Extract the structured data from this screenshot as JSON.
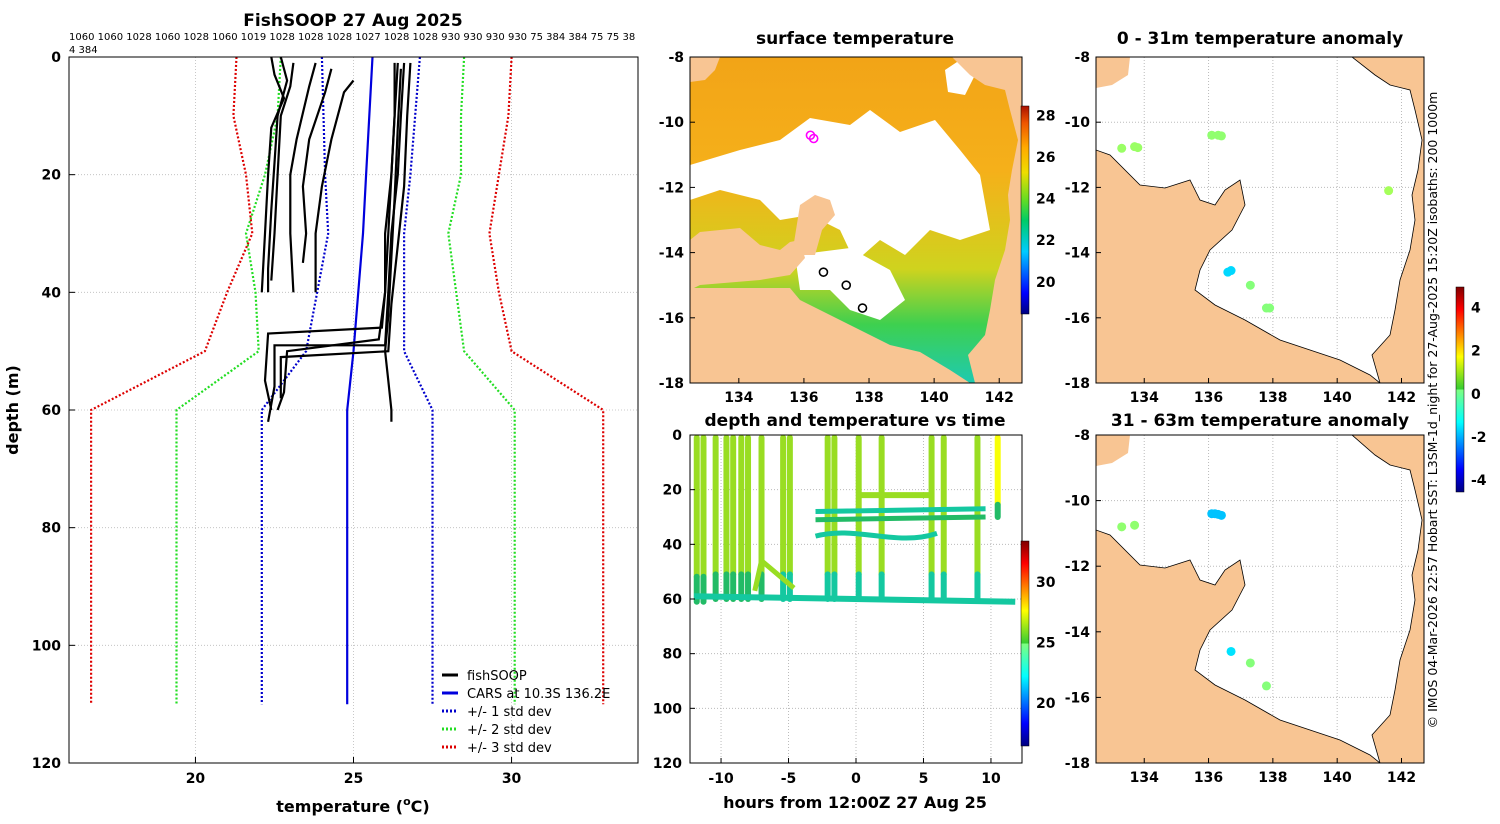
{
  "chart_data": [
    {
      "id": "profile",
      "type": "line",
      "title": "FishSOOP 27 Aug 2025",
      "xlabel": "temperature (°C)",
      "xlabel_main": "temperature (",
      "xlabel_sup": "o",
      "xlabel_tail": "C)",
      "ylabel": "depth (m)",
      "xlim": [
        16,
        34
      ],
      "ylim": [
        0,
        120
      ],
      "xticks": [
        20,
        25,
        30
      ],
      "yticks": [
        0,
        20,
        40,
        60,
        80,
        100,
        120
      ],
      "y_reversed": true,
      "grid": true,
      "top_labels_line1": "1060 1060 1028 1060 1028 1060 1019 1028 1028 1028 1027 1028 1028 930 930 930 930 75 384 384 75 75 38",
      "top_labels_line2": "4 384",
      "legend_position": "bottom-right",
      "legend": [
        {
          "label": "fishSOOP",
          "color": "#000000",
          "style": "solid"
        },
        {
          "label": "CARS at 10.3S 136.2E",
          "color": "#0000dd",
          "style": "solid"
        },
        {
          "label": "+/- 1 std dev",
          "color": "#0000cc",
          "style": "dotted"
        },
        {
          "label": "+/- 2 std dev",
          "color": "#22dd22",
          "style": "dotted"
        },
        {
          "label": "+/- 3 std dev",
          "color": "#dd0000",
          "style": "dotted"
        }
      ],
      "series": [
        {
          "name": "CARS",
          "color": "#0000dd",
          "style": "solid",
          "points": [
            [
              25.6,
              0
            ],
            [
              25.4,
              20
            ],
            [
              25.3,
              30
            ],
            [
              25.0,
              50
            ],
            [
              24.8,
              60
            ],
            [
              24.8,
              110
            ]
          ]
        },
        {
          "name": "-1 std",
          "color": "#0000cc",
          "style": "dotted",
          "points": [
            [
              24.0,
              0
            ],
            [
              24.1,
              20
            ],
            [
              24.2,
              30
            ],
            [
              23.5,
              50
            ],
            [
              22.1,
              60
            ],
            [
              22.1,
              110
            ]
          ]
        },
        {
          "name": "+1 std",
          "color": "#0000cc",
          "style": "dotted",
          "points": [
            [
              27.1,
              0
            ],
            [
              26.8,
              20
            ],
            [
              26.6,
              30
            ],
            [
              26.6,
              50
            ],
            [
              27.5,
              60
            ],
            [
              27.5,
              110
            ]
          ]
        },
        {
          "name": "-2 std",
          "color": "#22dd22",
          "style": "dotted",
          "points": [
            [
              22.7,
              0
            ],
            [
              22.6,
              10
            ],
            [
              22.2,
              20
            ],
            [
              21.6,
              30
            ],
            [
              21.9,
              40
            ],
            [
              22.0,
              50
            ],
            [
              19.4,
              60
            ],
            [
              19.4,
              110
            ]
          ]
        },
        {
          "name": "+2 std",
          "color": "#22dd22",
          "style": "dotted",
          "points": [
            [
              28.5,
              0
            ],
            [
              28.4,
              10
            ],
            [
              28.4,
              20
            ],
            [
              28.0,
              30
            ],
            [
              28.5,
              50
            ],
            [
              30.1,
              60
            ],
            [
              30.1,
              110
            ]
          ]
        },
        {
          "name": "-3 std",
          "color": "#dd0000",
          "style": "dotted",
          "points": [
            [
              21.3,
              0
            ],
            [
              21.2,
              10
            ],
            [
              21.6,
              20
            ],
            [
              21.8,
              30
            ],
            [
              21.0,
              40
            ],
            [
              20.3,
              50
            ],
            [
              16.7,
              60
            ],
            [
              16.7,
              110
            ]
          ]
        },
        {
          "name": "+3 std",
          "color": "#dd0000",
          "style": "dotted",
          "points": [
            [
              30.0,
              0
            ],
            [
              29.9,
              10
            ],
            [
              29.6,
              20
            ],
            [
              29.3,
              30
            ],
            [
              29.6,
              40
            ],
            [
              30.0,
              50
            ],
            [
              32.9,
              60
            ],
            [
              32.9,
              110
            ]
          ]
        },
        {
          "name": "fishSOOP A",
          "color": "#000000",
          "style": "solid",
          "points": [
            [
              22.4,
              0
            ],
            [
              22.5,
              3
            ],
            [
              22.8,
              7
            ],
            [
              22.4,
              12
            ],
            [
              22.3,
              20
            ],
            [
              22.2,
              30
            ],
            [
              22.1,
              40
            ]
          ]
        },
        {
          "name": "fishSOOP B",
          "color": "#000000",
          "style": "solid",
          "points": [
            [
              22.7,
              0
            ],
            [
              22.9,
              4
            ],
            [
              22.6,
              10
            ],
            [
              22.5,
              18
            ],
            [
              22.4,
              26
            ],
            [
              22.3,
              36
            ],
            [
              22.3,
              40
            ]
          ]
        },
        {
          "name": "fishSOOP C",
          "color": "#000000",
          "style": "solid",
          "points": [
            [
              23.1,
              1
            ],
            [
              23.0,
              5
            ],
            [
              22.7,
              10
            ],
            [
              22.6,
              20
            ],
            [
              22.5,
              30
            ],
            [
              22.4,
              38
            ]
          ]
        },
        {
          "name": "fishSOOP D",
          "color": "#000000",
          "style": "solid",
          "points": [
            [
              23.8,
              1
            ],
            [
              23.6,
              5
            ],
            [
              23.2,
              14
            ],
            [
              23.0,
              20
            ],
            [
              23.0,
              30
            ],
            [
              23.1,
              40
            ]
          ]
        },
        {
          "name": "fishSOOP E",
          "color": "#000000",
          "style": "solid",
          "points": [
            [
              24.3,
              2
            ],
            [
              24.1,
              6
            ],
            [
              23.6,
              14
            ],
            [
              23.4,
              22
            ],
            [
              23.5,
              30
            ],
            [
              23.4,
              35
            ]
          ]
        },
        {
          "name": "fishSOOP F",
          "color": "#000000",
          "style": "solid",
          "points": [
            [
              25.0,
              4
            ],
            [
              24.7,
              6
            ],
            [
              24.3,
              14
            ],
            [
              24.0,
              22
            ],
            [
              23.8,
              30
            ],
            [
              23.8,
              40
            ]
          ]
        },
        {
          "name": "fishSOOP G",
          "color": "#000000",
          "style": "solid",
          "points": [
            [
              26.4,
              1
            ],
            [
              26.3,
              10
            ],
            [
              26.2,
              20
            ],
            [
              26.0,
              30
            ],
            [
              26.0,
              40
            ],
            [
              25.9,
              46
            ],
            [
              22.3,
              47
            ],
            [
              22.2,
              55
            ],
            [
              22.4,
              60
            ]
          ]
        },
        {
          "name": "fishSOOP H",
          "color": "#000000",
          "style": "solid",
          "points": [
            [
              26.6,
              1
            ],
            [
              26.5,
              10
            ],
            [
              26.4,
              20
            ],
            [
              26.2,
              30
            ],
            [
              26.1,
              40
            ],
            [
              26.0,
              49
            ],
            [
              22.5,
              49
            ],
            [
              22.5,
              56
            ],
            [
              22.3,
              62
            ]
          ]
        },
        {
          "name": "fishSOOP I",
          "color": "#000000",
          "style": "solid",
          "points": [
            [
              26.8,
              1
            ],
            [
              26.7,
              10
            ],
            [
              26.6,
              22
            ],
            [
              26.4,
              32
            ],
            [
              26.2,
              42
            ],
            [
              26.1,
              50
            ],
            [
              22.7,
              51
            ],
            [
              22.7,
              58
            ]
          ]
        },
        {
          "name": "fishSOOP J",
          "color": "#000000",
          "style": "solid",
          "points": [
            [
              26.5,
              2
            ],
            [
              26.4,
              12
            ],
            [
              26.3,
              24
            ],
            [
              26.2,
              34
            ],
            [
              26.1,
              44
            ],
            [
              26.0,
              50
            ],
            [
              26.1,
              55
            ],
            [
              26.2,
              60
            ],
            [
              26.2,
              62
            ]
          ]
        },
        {
          "name": "fishSOOP K",
          "color": "#000000",
          "style": "solid",
          "points": [
            [
              26.3,
              1
            ],
            [
              26.3,
              10
            ],
            [
              26.2,
              20
            ],
            [
              26.1,
              30
            ],
            [
              26.0,
              40
            ],
            [
              25.8,
              48
            ],
            [
              22.9,
              50
            ],
            [
              22.8,
              57
            ],
            [
              22.6,
              60
            ]
          ]
        }
      ]
    },
    {
      "id": "sst",
      "type": "heatmap",
      "title": "surface temperature",
      "xticks": [
        134,
        136,
        138,
        140,
        142
      ],
      "yticks": [
        -8,
        -10,
        -12,
        -14,
        -16,
        -18
      ],
      "xlim": [
        132.5,
        142.7
      ],
      "ylim": [
        -18,
        -8
      ],
      "colorbar_ticks": [
        28,
        26,
        24,
        22,
        20
      ],
      "colorbar_range": [
        18.5,
        28.5
      ],
      "markers": [
        {
          "lon": 136.2,
          "lat": -10.4,
          "color": "#ff00ff"
        },
        {
          "lon": 136.3,
          "lat": -10.5,
          "color": "#ff00ff"
        },
        {
          "lon": 136.6,
          "lat": -14.6,
          "color": "#000000"
        },
        {
          "lon": 137.3,
          "lat": -15.0,
          "color": "#000000"
        },
        {
          "lon": 137.8,
          "lat": -15.7,
          "color": "#000000"
        }
      ]
    },
    {
      "id": "timeseries",
      "type": "scatter",
      "title": "depth and temperature vs time",
      "xlabel": "hours from 12:00Z 27 Aug 25",
      "xlim": [
        -12.3,
        12.3
      ],
      "ylim": [
        0,
        120
      ],
      "y_reversed": true,
      "xticks": [
        -10,
        -5,
        0,
        5,
        10
      ],
      "yticks": [
        0,
        20,
        40,
        60,
        80,
        100,
        120
      ],
      "colorbar_ticks": [
        30,
        25,
        20
      ],
      "colorbar_range": [
        16.5,
        33.5
      ],
      "casts": [
        {
          "x": -11.8,
          "bottom": 61,
          "t": 23
        },
        {
          "x": -11.3,
          "bottom": 61,
          "t": 23
        },
        {
          "x": -10.4,
          "bottom": 60,
          "t": 23
        },
        {
          "x": -9.6,
          "bottom": 60,
          "t": 23
        },
        {
          "x": -9.1,
          "bottom": 60,
          "t": 23
        },
        {
          "x": -8.5,
          "bottom": 60,
          "t": 23
        },
        {
          "x": -8.0,
          "bottom": 60,
          "t": 23
        },
        {
          "x": -7.0,
          "bottom": 60,
          "t": 23
        },
        {
          "x": -5.4,
          "bottom": 60,
          "t": 22
        },
        {
          "x": -4.9,
          "bottom": 60,
          "t": 22
        },
        {
          "x": -2.1,
          "bottom": 60,
          "t": 22
        },
        {
          "x": -1.6,
          "bottom": 60,
          "t": 22
        },
        {
          "x": 0.2,
          "bottom": 60,
          "t": 22
        },
        {
          "x": 1.9,
          "bottom": 60,
          "t": 22
        },
        {
          "x": 5.6,
          "bottom": 60,
          "t": 22
        },
        {
          "x": 6.5,
          "bottom": 60,
          "t": 22
        },
        {
          "x": 9.0,
          "bottom": 60,
          "t": 22
        },
        {
          "x": 10.5,
          "bottom": 30,
          "t": 24
        }
      ]
    },
    {
      "id": "anom_upper",
      "type": "scatter",
      "title": "0 - 31m temperature anomaly",
      "xticks": [
        134,
        136,
        138,
        140,
        142
      ],
      "yticks": [
        -8,
        -10,
        -12,
        -14,
        -16,
        -18
      ],
      "xlim": [
        132.5,
        142.7
      ],
      "ylim": [
        -18,
        -8
      ],
      "points": [
        {
          "lon": 133.3,
          "lat": -10.8,
          "anomaly": 0.5
        },
        {
          "lon": 133.7,
          "lat": -10.75,
          "anomaly": 0.5
        },
        {
          "lon": 133.8,
          "lat": -10.78,
          "anomaly": 0.5
        },
        {
          "lon": 136.1,
          "lat": -10.4,
          "anomaly": 0.4
        },
        {
          "lon": 136.3,
          "lat": -10.4,
          "anomaly": 0.4
        },
        {
          "lon": 136.4,
          "lat": -10.42,
          "anomaly": 0.4
        },
        {
          "lon": 141.6,
          "lat": -12.1,
          "anomaly": 0.6
        },
        {
          "lon": 136.6,
          "lat": -14.6,
          "anomaly": -1.3
        },
        {
          "lon": 136.7,
          "lat": -14.55,
          "anomaly": -1.3
        },
        {
          "lon": 137.3,
          "lat": -15.0,
          "anomaly": 0.3
        },
        {
          "lon": 137.8,
          "lat": -15.7,
          "anomaly": 0.3
        },
        {
          "lon": 137.9,
          "lat": -15.7,
          "anomaly": 0.3
        }
      ]
    },
    {
      "id": "anom_lower",
      "type": "scatter",
      "title": "31 - 63m temperature anomaly",
      "xticks": [
        134,
        136,
        138,
        140,
        142
      ],
      "yticks": [
        -8,
        -10,
        -12,
        -14,
        -16,
        -18
      ],
      "xlim": [
        132.5,
        142.7
      ],
      "ylim": [
        -18,
        -8
      ],
      "points": [
        {
          "lon": 133.3,
          "lat": -10.8,
          "anomaly": 0.4
        },
        {
          "lon": 133.7,
          "lat": -10.75,
          "anomaly": 0.4
        },
        {
          "lon": 136.1,
          "lat": -10.4,
          "anomaly": -1.5
        },
        {
          "lon": 136.2,
          "lat": -10.4,
          "anomaly": -1.5
        },
        {
          "lon": 136.3,
          "lat": -10.42,
          "anomaly": -1.5
        },
        {
          "lon": 136.4,
          "lat": -10.45,
          "anomaly": -1.5
        },
        {
          "lon": 136.7,
          "lat": -14.6,
          "anomaly": -1.2
        },
        {
          "lon": 137.3,
          "lat": -14.95,
          "anomaly": 0.3
        },
        {
          "lon": 137.8,
          "lat": -15.65,
          "anomaly": 0.3
        }
      ],
      "colorbar_ticks": [
        4,
        2,
        0,
        -2,
        -4
      ],
      "colorbar_range": [
        -4.5,
        5
      ]
    }
  ],
  "side_credit": "© IMOS 04-Mar-2026 22:57 Hobart SST: L3SM-1d_night for 27-Aug-2025 15:20Z isobaths: 200  1000m"
}
